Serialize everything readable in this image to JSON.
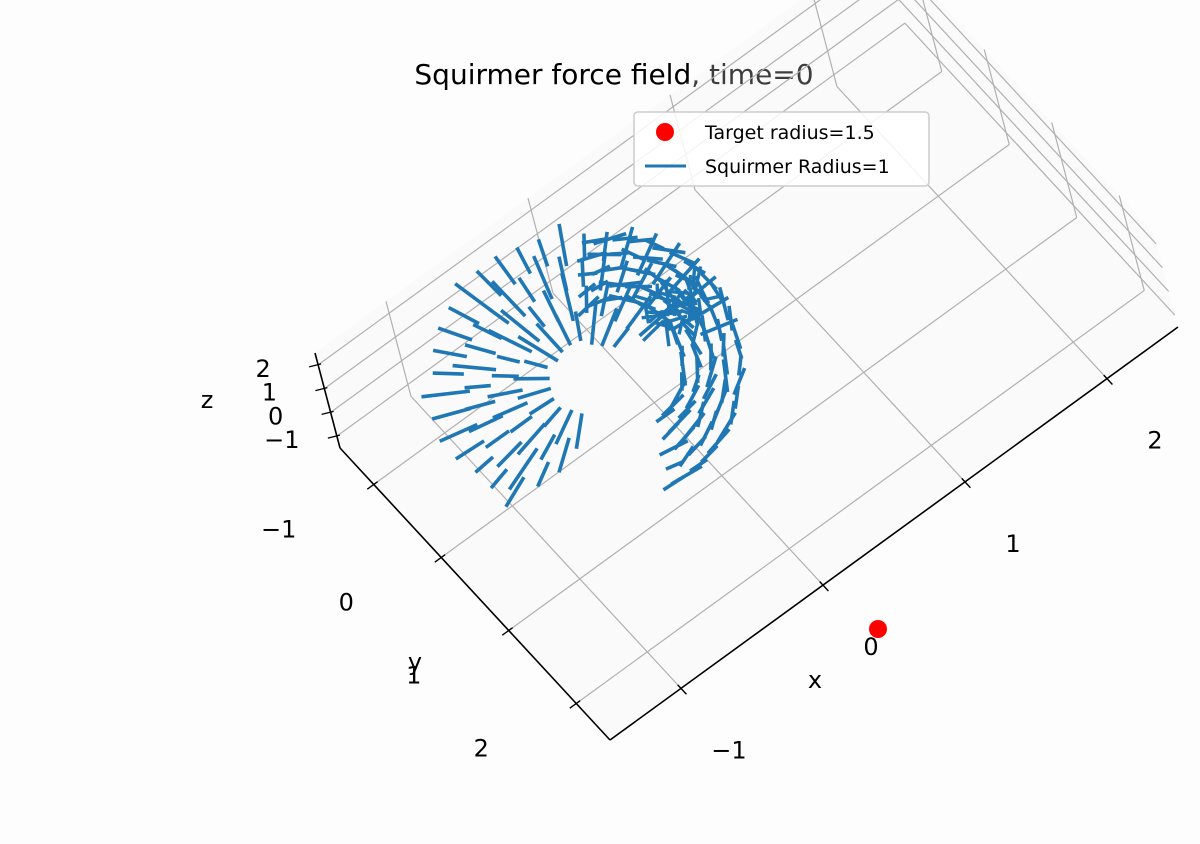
{
  "chart_data": {
    "type": "quiver3d",
    "title": "Squirmer force field, time=0",
    "xlabel": "x",
    "ylabel": "y",
    "zlabel": "z",
    "xticks": [
      "−1",
      "0",
      "1",
      "2"
    ],
    "yticks": [
      "−1",
      "0",
      "1",
      "2"
    ],
    "zticks": [
      "−1",
      "0",
      "1",
      "2"
    ],
    "xlim": [
      -1.5,
      2.5
    ],
    "ylim": [
      -1.5,
      2.5
    ],
    "zlim": [
      -1.5,
      2.5
    ],
    "grid": true,
    "legend_position": "top-right",
    "legend": [
      {
        "label": "Target radius=1.5",
        "marker": "circle",
        "color": "#ff0000"
      },
      {
        "label": "Squirmer Radius=1",
        "marker": "line",
        "color": "#1f77b4"
      }
    ],
    "target_point": {
      "x": 1.5,
      "y": 0,
      "z": 0,
      "color": "#ff0000"
    },
    "squirmer": {
      "center": [
        0,
        0,
        0
      ],
      "radius": 1,
      "color": "#1f77b4"
    }
  }
}
